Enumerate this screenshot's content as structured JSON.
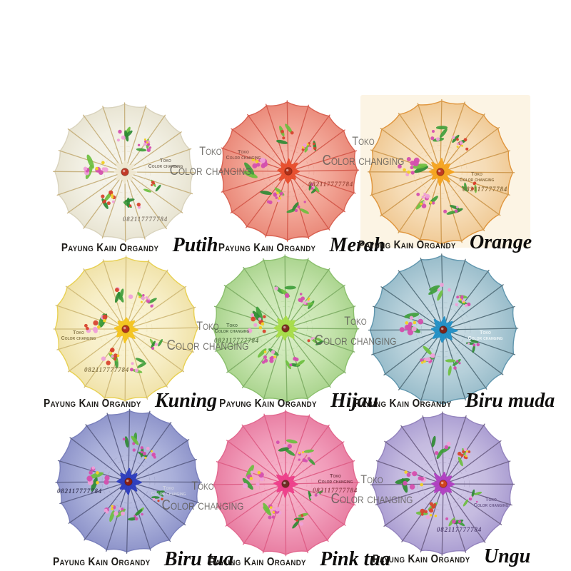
{
  "brand_watermark": {
    "line1": "Toko",
    "line2": "Color changing",
    "phone": "082117777784",
    "color": "#5c5954"
  },
  "catalog": {
    "label": "Payung Kain Organdy",
    "products": [
      {
        "name": "Putih",
        "canopy": {
          "center": "#f7f5ee",
          "mid": "#f2f0e4",
          "edge": "#e8e4d2"
        },
        "rib": "#c6b07c",
        "rim": "#d9d3bd",
        "hub": "#efe8d2",
        "knob": "#c23a28"
      },
      {
        "name": "Merah",
        "canopy": {
          "center": "#f8c6ba",
          "mid": "#f2a596",
          "edge": "#ea8a7a"
        },
        "rib": "#d3584a",
        "rim": "#d96252",
        "hub": "#e84e2c",
        "knob": "#b03018"
      },
      {
        "name": "Orange",
        "canopy": {
          "center": "#faead0",
          "mid": "#f6dcb6",
          "edge": "#f0ca96"
        },
        "rib": "#cf9a50",
        "rim": "#e0963e",
        "hub": "#f6a41e",
        "knob": "#c23a20"
      },
      {
        "name": "Kuning",
        "canopy": {
          "center": "#fbf6dc",
          "mid": "#f7eec6",
          "edge": "#f0e2a8"
        },
        "rib": "#d0ba78",
        "rim": "#e8d052",
        "hub": "#f5c41c",
        "knob": "#b5341e"
      },
      {
        "name": "Hijau",
        "canopy": {
          "center": "#dcf0ca",
          "mid": "#c6e4ae",
          "edge": "#aad48e"
        },
        "rib": "#7fae66",
        "rim": "#8cc06e",
        "hub": "#a8de48",
        "knob": "#7d2f20"
      },
      {
        "name": "Biru muda",
        "canopy": {
          "center": "#d2e1e8",
          "mid": "#b6d0da",
          "edge": "#98bcca"
        },
        "rib": "#54707c",
        "rim": "#6096ae",
        "hub": "#2090c6",
        "knob": "#7d241a"
      },
      {
        "name": "Biru tua",
        "canopy": {
          "center": "#c5c8e6",
          "mid": "#aab0da",
          "edge": "#8e94ca"
        },
        "rib": "#5c6088",
        "rim": "#7a80bc",
        "hub": "#2c3cbe",
        "knob": "#8a2016"
      },
      {
        "name": "Pink tua",
        "canopy": {
          "center": "#f7bcd0",
          "mid": "#f19cba",
          "edge": "#e87ea2"
        },
        "rib": "#de5e86",
        "rim": "#e2688f",
        "hub": "#ee3e8a",
        "knob": "#6d2c24"
      },
      {
        "name": "Ungu",
        "canopy": {
          "center": "#d6cfeb",
          "mid": "#c5bbe0",
          "edge": "#ab9ed2"
        },
        "rib": "#6f6288",
        "rim": "#9484be",
        "hub": "#b13ec2",
        "knob": "#d1431e"
      }
    ],
    "flower_palette": {
      "magenta": "#d44fae",
      "pink": "#efa0d8",
      "red": "#d8432e",
      "yellow": "#f2cf2a",
      "greens": [
        "#3f9e3b",
        "#6cbf3e",
        "#2e8a33"
      ]
    }
  }
}
